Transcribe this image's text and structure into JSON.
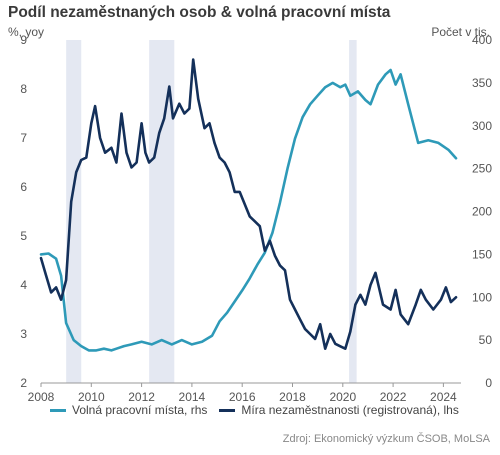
{
  "title": "Podíl nezaměstnaných osob & volná pracovní místa",
  "left_unit": "%, yoy",
  "right_unit": "Počet v tis.",
  "source": "Zdroj: Ekonomický výzkum ČSOB, MoLSA",
  "colors": {
    "vacancies": "#2e9ab8",
    "unemployment": "#14305a",
    "recession": "#e4e8f2",
    "axis": "#999999"
  },
  "chart_data": {
    "type": "line",
    "title": "Podíl nezaměstnaných osob & volná pracovní místa",
    "xlabel": "",
    "ylabel": "%, yoy",
    "y2label": "Počet v tis.",
    "xlim": [
      2008,
      2024.7
    ],
    "ylim": [
      2,
      9
    ],
    "y2lim": [
      0,
      400
    ],
    "x_ticks": [
      2008,
      2010,
      2012,
      2014,
      2016,
      2018,
      2020,
      2022,
      2024
    ],
    "y_ticks": [
      2,
      3,
      4,
      5,
      6,
      7,
      8,
      9
    ],
    "y2_ticks": [
      0,
      50,
      100,
      150,
      200,
      250,
      300,
      350,
      400
    ],
    "grid": false,
    "legend_position": "bottom",
    "shaded_periods": [
      [
        2009.0,
        2009.6
      ],
      [
        2012.3,
        2013.3
      ],
      [
        2020.25,
        2020.55
      ]
    ],
    "series": [
      {
        "name": "Volná pracovní místa, rhs",
        "axis": "right",
        "x": [
          2008.0,
          2008.3,
          2008.6,
          2008.8,
          2009.0,
          2009.3,
          2009.6,
          2009.9,
          2010.2,
          2010.5,
          2010.8,
          2011.0,
          2011.3,
          2011.6,
          2012.0,
          2012.4,
          2012.8,
          2013.2,
          2013.6,
          2014.0,
          2014.4,
          2014.8,
          2015.1,
          2015.4,
          2015.7,
          2016.0,
          2016.3,
          2016.6,
          2016.9,
          2017.2,
          2017.5,
          2017.8,
          2018.1,
          2018.4,
          2018.7,
          2019.0,
          2019.3,
          2019.6,
          2019.9,
          2020.1,
          2020.3,
          2020.6,
          2020.9,
          2021.1,
          2021.4,
          2021.7,
          2021.9,
          2022.1,
          2022.3,
          2022.6,
          2023.0,
          2023.4,
          2023.8,
          2024.2,
          2024.5
        ],
        "values": [
          150,
          151,
          145,
          125,
          70,
          50,
          43,
          38,
          38,
          40,
          38,
          40,
          43,
          45,
          48,
          45,
          50,
          45,
          50,
          45,
          48,
          55,
          72,
          82,
          95,
          108,
          122,
          138,
          152,
          175,
          210,
          250,
          285,
          310,
          325,
          335,
          345,
          350,
          345,
          348,
          335,
          340,
          330,
          325,
          348,
          360,
          365,
          348,
          360,
          325,
          280,
          283,
          280,
          272,
          262
        ]
      },
      {
        "name": "Míra nezaměstnanosti (registrovaná), lhs",
        "axis": "left",
        "x": [
          2008.0,
          2008.2,
          2008.4,
          2008.6,
          2008.8,
          2009.0,
          2009.2,
          2009.4,
          2009.6,
          2009.8,
          2010.0,
          2010.15,
          2010.35,
          2010.55,
          2010.8,
          2011.0,
          2011.2,
          2011.4,
          2011.6,
          2011.8,
          2012.0,
          2012.15,
          2012.3,
          2012.5,
          2012.7,
          2012.9,
          2013.1,
          2013.25,
          2013.5,
          2013.7,
          2013.9,
          2014.05,
          2014.25,
          2014.5,
          2014.7,
          2014.9,
          2015.1,
          2015.3,
          2015.5,
          2015.7,
          2015.9,
          2016.1,
          2016.3,
          2016.5,
          2016.7,
          2016.9,
          2017.1,
          2017.3,
          2017.5,
          2017.7,
          2017.9,
          2018.1,
          2018.3,
          2018.5,
          2018.7,
          2018.9,
          2019.1,
          2019.3,
          2019.5,
          2019.7,
          2019.9,
          2020.1,
          2020.3,
          2020.5,
          2020.7,
          2020.9,
          2021.1,
          2021.3,
          2021.6,
          2021.9,
          2022.1,
          2022.3,
          2022.6,
          2022.9,
          2023.1,
          2023.3,
          2023.6,
          2023.9,
          2024.1,
          2024.3,
          2024.5
        ],
        "values": [
          4.55,
          4.2,
          3.85,
          3.95,
          3.7,
          4.1,
          5.7,
          6.3,
          6.55,
          6.6,
          7.3,
          7.65,
          7.0,
          6.7,
          6.8,
          6.5,
          7.5,
          6.7,
          6.4,
          6.5,
          7.3,
          6.7,
          6.5,
          6.6,
          7.1,
          7.4,
          8.05,
          7.4,
          7.7,
          7.5,
          7.6,
          8.6,
          7.8,
          7.2,
          7.3,
          6.9,
          6.6,
          6.5,
          6.3,
          5.9,
          5.9,
          5.65,
          5.4,
          5.3,
          5.2,
          4.7,
          4.9,
          4.6,
          4.4,
          4.3,
          3.7,
          3.5,
          3.3,
          3.1,
          3.0,
          2.9,
          3.2,
          2.7,
          3.0,
          2.8,
          2.75,
          2.7,
          3.05,
          3.6,
          3.8,
          3.6,
          4.0,
          4.25,
          3.6,
          3.5,
          3.9,
          3.4,
          3.2,
          3.6,
          3.9,
          3.7,
          3.5,
          3.7,
          3.95,
          3.65,
          3.75
        ]
      }
    ]
  },
  "legend": [
    "Volná pracovní místa, rhs",
    "Míra nezaměstnanosti (registrovaná), lhs"
  ]
}
